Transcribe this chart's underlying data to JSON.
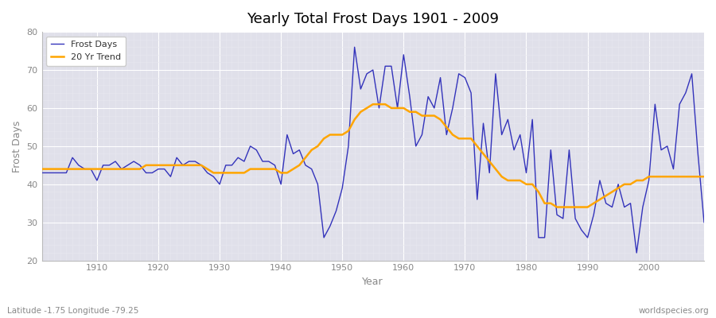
{
  "title": "Yearly Total Frost Days 1901 - 2009",
  "xlabel": "Year",
  "ylabel": "Frost Days",
  "subtitle": "Latitude -1.75 Longitude -79.25",
  "watermark": "worldspecies.org",
  "legend_labels": [
    "Frost Days",
    "20 Yr Trend"
  ],
  "line_color": "#3333bb",
  "trend_color": "#ffa500",
  "bg_color": "#e0e0ea",
  "fig_color": "#ffffff",
  "grid_major_color": "#ffffff",
  "grid_minor_color": "#e8e8f0",
  "tick_color": "#888888",
  "ylim": [
    20,
    80
  ],
  "xlim": [
    1901,
    2009
  ],
  "yticks": [
    20,
    30,
    40,
    50,
    60,
    70,
    80
  ],
  "xticks": [
    1910,
    1920,
    1930,
    1940,
    1950,
    1960,
    1970,
    1980,
    1990,
    2000
  ],
  "frost_days": {
    "1901": 43,
    "1902": 43,
    "1903": 43,
    "1904": 43,
    "1905": 43,
    "1906": 47,
    "1907": 45,
    "1908": 44,
    "1909": 44,
    "1910": 41,
    "1911": 45,
    "1912": 45,
    "1913": 46,
    "1914": 44,
    "1915": 45,
    "1916": 46,
    "1917": 45,
    "1918": 43,
    "1919": 43,
    "1920": 44,
    "1921": 44,
    "1922": 42,
    "1923": 47,
    "1924": 45,
    "1925": 46,
    "1926": 46,
    "1927": 45,
    "1928": 43,
    "1929": 42,
    "1930": 40,
    "1931": 45,
    "1932": 45,
    "1933": 47,
    "1934": 46,
    "1935": 50,
    "1936": 49,
    "1937": 46,
    "1938": 46,
    "1939": 45,
    "1940": 40,
    "1941": 53,
    "1942": 48,
    "1943": 49,
    "1944": 45,
    "1945": 44,
    "1946": 40,
    "1947": 26,
    "1948": 29,
    "1949": 33,
    "1950": 39,
    "1951": 50,
    "1952": 76,
    "1953": 65,
    "1954": 69,
    "1955": 70,
    "1956": 60,
    "1957": 71,
    "1958": 71,
    "1959": 60,
    "1960": 74,
    "1961": 63,
    "1962": 50,
    "1963": 53,
    "1964": 63,
    "1965": 60,
    "1966": 68,
    "1967": 53,
    "1968": 60,
    "1969": 69,
    "1970": 68,
    "1971": 64,
    "1972": 36,
    "1973": 56,
    "1974": 43,
    "1975": 69,
    "1976": 53,
    "1977": 57,
    "1978": 49,
    "1979": 53,
    "1980": 43,
    "1981": 57,
    "1982": 26,
    "1983": 26,
    "1984": 49,
    "1985": 32,
    "1986": 31,
    "1987": 49,
    "1988": 31,
    "1989": 28,
    "1990": 26,
    "1991": 32,
    "1992": 41,
    "1993": 35,
    "1994": 34,
    "1995": 40,
    "1996": 34,
    "1997": 35,
    "1998": 22,
    "1999": 34,
    "2000": 41,
    "2001": 61,
    "2002": 49,
    "2003": 50,
    "2004": 44,
    "2005": 61,
    "2006": 64,
    "2007": 69,
    "2008": 48,
    "2009": 30
  },
  "trend_days": {
    "1901": 44,
    "1902": 44,
    "1903": 44,
    "1904": 44,
    "1905": 44,
    "1906": 44,
    "1907": 44,
    "1908": 44,
    "1909": 44,
    "1910": 44,
    "1911": 44,
    "1912": 44,
    "1913": 44,
    "1914": 44,
    "1915": 44,
    "1916": 44,
    "1917": 44,
    "1918": 45,
    "1919": 45,
    "1920": 45,
    "1921": 45,
    "1922": 45,
    "1923": 45,
    "1924": 45,
    "1925": 45,
    "1926": 45,
    "1927": 45,
    "1928": 44,
    "1929": 43,
    "1930": 43,
    "1931": 43,
    "1932": 43,
    "1933": 43,
    "1934": 43,
    "1935": 44,
    "1936": 44,
    "1937": 44,
    "1938": 44,
    "1939": 44,
    "1940": 43,
    "1941": 43,
    "1942": 44,
    "1943": 45,
    "1944": 47,
    "1945": 49,
    "1946": 50,
    "1947": 52,
    "1948": 53,
    "1949": 53,
    "1950": 53,
    "1951": 54,
    "1952": 57,
    "1953": 59,
    "1954": 60,
    "1955": 61,
    "1956": 61,
    "1957": 61,
    "1958": 60,
    "1959": 60,
    "1960": 60,
    "1961": 59,
    "1962": 59,
    "1963": 58,
    "1964": 58,
    "1965": 58,
    "1966": 57,
    "1967": 55,
    "1968": 53,
    "1969": 52,
    "1970": 52,
    "1971": 52,
    "1972": 50,
    "1973": 48,
    "1974": 46,
    "1975": 44,
    "1976": 42,
    "1977": 41,
    "1978": 41,
    "1979": 41,
    "1980": 40,
    "1981": 40,
    "1982": 38,
    "1983": 35,
    "1984": 35,
    "1985": 34,
    "1986": 34,
    "1987": 34,
    "1988": 34,
    "1989": 34,
    "1990": 34,
    "1991": 35,
    "1992": 36,
    "1993": 37,
    "1994": 38,
    "1995": 39,
    "1996": 40,
    "1997": 40,
    "1998": 41,
    "1999": 41,
    "2000": 42,
    "2001": 42,
    "2002": 42,
    "2003": 42,
    "2004": 42,
    "2005": 42,
    "2006": 42,
    "2007": 42,
    "2008": 42,
    "2009": 42
  }
}
